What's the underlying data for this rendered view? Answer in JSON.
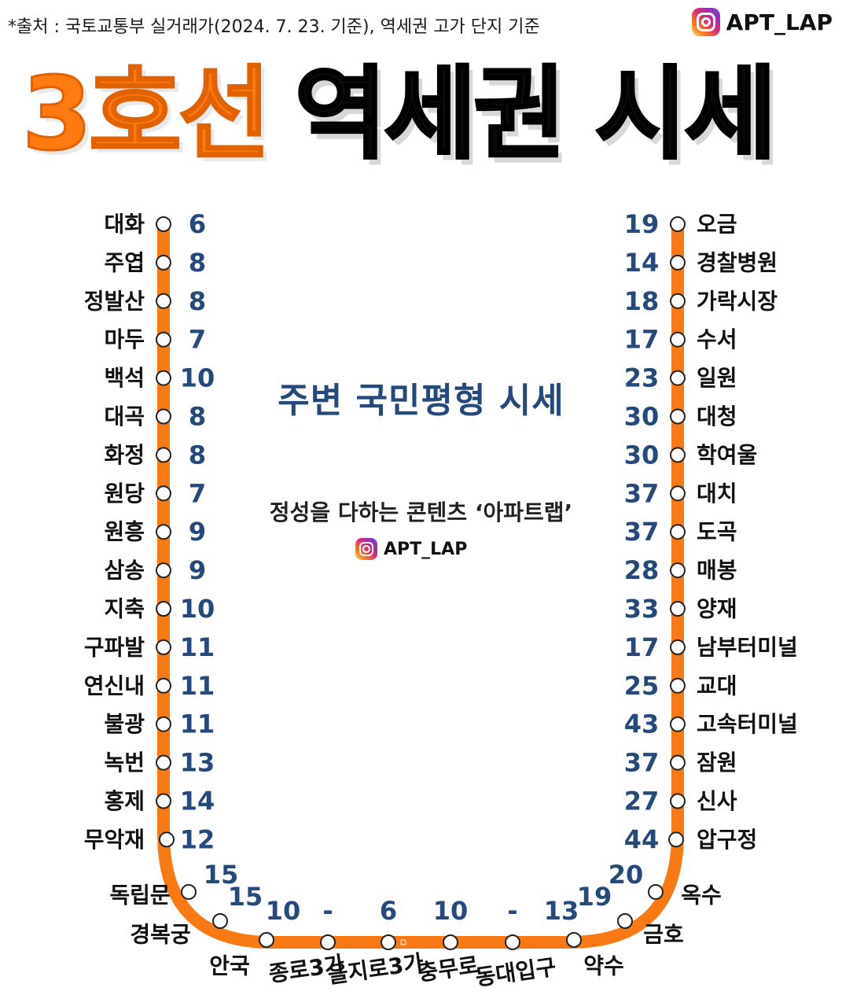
{
  "source_note": "*출처 : 국토교통부 실거래가(2024. 7. 23. 기준), 역세권 고가 단지 기준",
  "brand": {
    "handle": "APT_LAP",
    "icon": "instagram-icon"
  },
  "title": {
    "line_name": "3호선",
    "rest": "역세권 시세"
  },
  "subtitle": "주변 국민평형 시세",
  "tagline": "정성을 다하는 콘텐츠 ‘아파트랩’",
  "colors": {
    "line": "#f97a14",
    "value": "#24497a",
    "title_accent": "#ff7a10"
  },
  "stations": {
    "left": [
      {
        "name": "대화",
        "value": "6"
      },
      {
        "name": "주엽",
        "value": "8"
      },
      {
        "name": "정발산",
        "value": "8"
      },
      {
        "name": "마두",
        "value": "7"
      },
      {
        "name": "백석",
        "value": "10"
      },
      {
        "name": "대곡",
        "value": "8"
      },
      {
        "name": "화정",
        "value": "8"
      },
      {
        "name": "원당",
        "value": "7"
      },
      {
        "name": "원흥",
        "value": "9"
      },
      {
        "name": "삼송",
        "value": "9"
      },
      {
        "name": "지축",
        "value": "10"
      },
      {
        "name": "구파발",
        "value": "11"
      },
      {
        "name": "연신내",
        "value": "11"
      },
      {
        "name": "불광",
        "value": "11"
      },
      {
        "name": "녹번",
        "value": "13"
      },
      {
        "name": "홍제",
        "value": "14"
      },
      {
        "name": "무악재",
        "value": "12"
      }
    ],
    "bottom": [
      {
        "name": "독립문",
        "value": "15"
      },
      {
        "name": "경복궁",
        "value": "15"
      },
      {
        "name": "안국",
        "value": "10"
      },
      {
        "name": "종로3가",
        "value": "-"
      },
      {
        "name": "을지로3가",
        "value": "6"
      },
      {
        "name": "충무로",
        "value": "10"
      },
      {
        "name": "동대입구",
        "value": "-"
      },
      {
        "name": "약수",
        "value": "13"
      },
      {
        "name": "금호",
        "value": "19"
      },
      {
        "name": "옥수",
        "value": "20"
      }
    ],
    "right": [
      {
        "name": "오금",
        "value": "19"
      },
      {
        "name": "경찰병원",
        "value": "14"
      },
      {
        "name": "가락시장",
        "value": "18"
      },
      {
        "name": "수서",
        "value": "17"
      },
      {
        "name": "일원",
        "value": "23"
      },
      {
        "name": "대청",
        "value": "30"
      },
      {
        "name": "학여울",
        "value": "30"
      },
      {
        "name": "대치",
        "value": "37"
      },
      {
        "name": "도곡",
        "value": "37"
      },
      {
        "name": "매봉",
        "value": "28"
      },
      {
        "name": "양재",
        "value": "33"
      },
      {
        "name": "남부터미널",
        "value": "17"
      },
      {
        "name": "교대",
        "value": "25"
      },
      {
        "name": "고속터미널",
        "value": "43"
      },
      {
        "name": "잠원",
        "value": "37"
      },
      {
        "name": "신사",
        "value": "27"
      },
      {
        "name": "압구정",
        "value": "44"
      }
    ]
  }
}
